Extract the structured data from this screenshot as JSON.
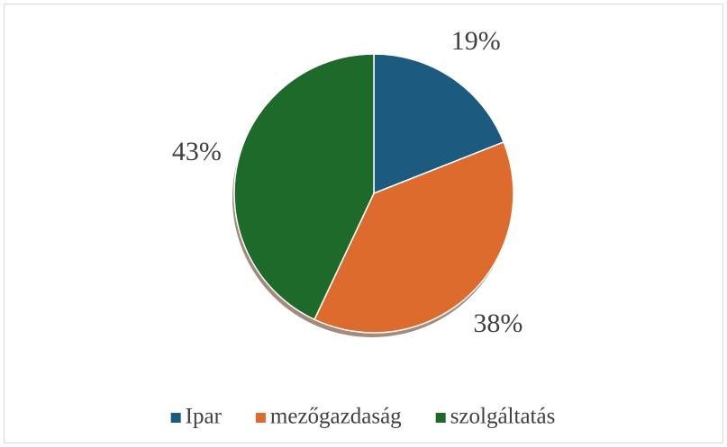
{
  "chart_data": {
    "type": "pie",
    "categories": [
      "Ipar",
      "mezőgazdaság",
      "szolgáltatás"
    ],
    "values": [
      19,
      38,
      43
    ],
    "value_labels": [
      "19%",
      "38%",
      "43%"
    ],
    "colors": [
      "#1c5a80",
      "#de6b2e",
      "#1e6a2a"
    ],
    "legend": "bottom"
  }
}
